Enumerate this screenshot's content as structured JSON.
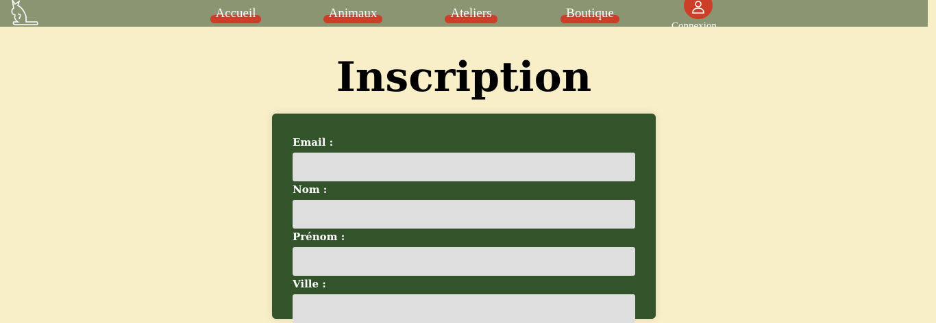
{
  "nav": {
    "items": [
      {
        "label": "Accueil"
      },
      {
        "label": "Animaux"
      },
      {
        "label": "Ateliers"
      },
      {
        "label": "Boutique"
      }
    ],
    "login_label": "Connexion"
  },
  "page_title": "Inscription",
  "form": {
    "fields": [
      {
        "label": "Email :",
        "value": ""
      },
      {
        "label": "Nom :",
        "value": ""
      },
      {
        "label": "Prénom :",
        "value": ""
      },
      {
        "label": "Ville :",
        "value": ""
      }
    ]
  },
  "colors": {
    "header": "#8b9571",
    "accent": "#cc3e28",
    "form_bg": "#33532b",
    "page_bg": "#f8efc8"
  }
}
